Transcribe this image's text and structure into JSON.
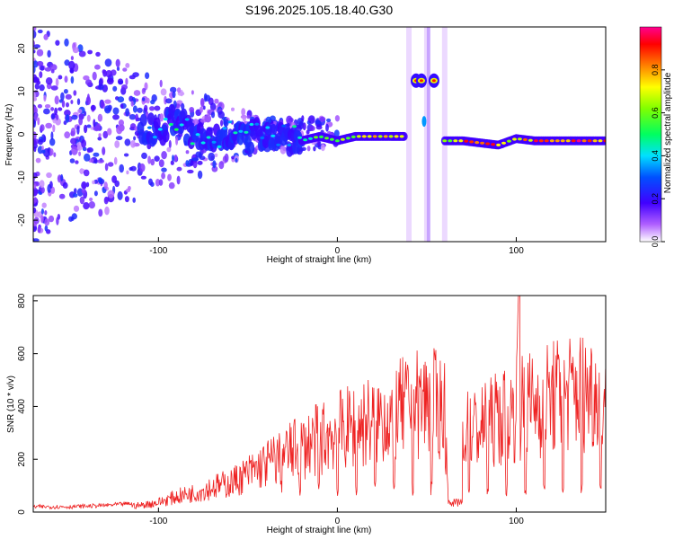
{
  "figure": {
    "title": "S196.2025.105.18.40.G30"
  },
  "colors": {
    "snr_line": "#ee2222",
    "axis": "#000000",
    "background": "#ffffff",
    "colormap": [
      "#ffffff",
      "#7b00ff",
      "#2a2aff",
      "#00ffff",
      "#00ff00",
      "#ffff00",
      "#ff7f00",
      "#ff0000",
      "#ff0090"
    ]
  },
  "chart_data": [
    {
      "type": "heatmap",
      "title": "S196.2025.105.18.40.G30",
      "xlabel": "Height of straight line (km)",
      "ylabel": "Frequency (Hz)",
      "xlim": [
        -170,
        150
      ],
      "ylim": [
        -25,
        25
      ],
      "xticks": [
        "-100",
        "0",
        "100"
      ],
      "yticks": [
        "-20",
        "-10",
        "0",
        "10",
        "20"
      ],
      "colorbar": {
        "label": "Normalized spectral amplitude",
        "range": [
          0,
          1
        ],
        "ticks": [
          "0.0",
          "0.2",
          "0.4",
          "0.6",
          "0.8"
        ]
      },
      "ridge": [
        {
          "x": -110,
          "freq": 1.0,
          "amp": 0.35
        },
        {
          "x": -100,
          "freq": 0.5,
          "amp": 0.45
        },
        {
          "x": -90,
          "freq": 4.0,
          "amp": 0.5
        },
        {
          "x": -80,
          "freq": -1.0,
          "amp": 0.45
        },
        {
          "x": -70,
          "freq": -1.5,
          "amp": 0.45
        },
        {
          "x": -60,
          "freq": 0.5,
          "amp": 0.45
        },
        {
          "x": -50,
          "freq": -1.0,
          "amp": 0.45
        },
        {
          "x": -40,
          "freq": 0.5,
          "amp": 0.4
        },
        {
          "x": -30,
          "freq": -0.5,
          "amp": 0.4
        },
        {
          "x": -20,
          "freq": -1.5,
          "amp": 0.5
        },
        {
          "x": -10,
          "freq": -0.5,
          "amp": 0.6
        },
        {
          "x": 0,
          "freq": -1.5,
          "amp": 0.7
        },
        {
          "x": 10,
          "freq": -0.5,
          "amp": 0.75
        },
        {
          "x": 20,
          "freq": -0.5,
          "amp": 0.8
        },
        {
          "x": 30,
          "freq": -0.5,
          "amp": 0.8
        },
        {
          "x": 38,
          "freq": -0.5,
          "amp": 0.75
        },
        {
          "x": 45,
          "freq": 12.5,
          "amp": 0.9
        },
        {
          "x": 55,
          "freq": 12.5,
          "amp": 0.85
        },
        {
          "x": 60,
          "freq": -1.5,
          "amp": 0.7
        },
        {
          "x": 70,
          "freq": -1.5,
          "amp": 0.9
        },
        {
          "x": 80,
          "freq": -2.0,
          "amp": 0.9
        },
        {
          "x": 90,
          "freq": -2.5,
          "amp": 0.9
        },
        {
          "x": 100,
          "freq": -1.0,
          "amp": 0.7
        },
        {
          "x": 110,
          "freq": -1.5,
          "amp": 0.95
        },
        {
          "x": 120,
          "freq": -1.5,
          "amp": 0.95
        },
        {
          "x": 130,
          "freq": -1.5,
          "amp": 0.95
        },
        {
          "x": 140,
          "freq": -1.5,
          "amp": 0.95
        },
        {
          "x": 150,
          "freq": -1.5,
          "amp": 0.9
        }
      ]
    },
    {
      "type": "line",
      "title": "",
      "xlabel": "Height of straight line (km)",
      "ylabel": "SNR (10 * v/v)",
      "xlim": [
        -170,
        150
      ],
      "ylim": [
        0,
        820
      ],
      "xticks": [
        "-100",
        "0",
        "100"
      ],
      "yticks": [
        "0",
        "200",
        "400",
        "600",
        "800"
      ],
      "series": [
        {
          "x": [
            -170,
            -150,
            -130,
            -110,
            -100,
            -90,
            -80,
            -70,
            -60,
            -50,
            -40,
            -30,
            -20,
            -10,
            0,
            10,
            20,
            30,
            40,
            50,
            60,
            62,
            65,
            70,
            75,
            80,
            90,
            100,
            101,
            102,
            110,
            120,
            130,
            140,
            150
          ],
          "values": [
            20,
            20,
            25,
            35,
            50,
            80,
            100,
            130,
            150,
            200,
            250,
            300,
            340,
            380,
            420,
            450,
            480,
            510,
            550,
            580,
            540,
            50,
            30,
            420,
            430,
            440,
            490,
            520,
            830,
            540,
            570,
            600,
            620,
            640,
            600
          ]
        }
      ]
    }
  ]
}
